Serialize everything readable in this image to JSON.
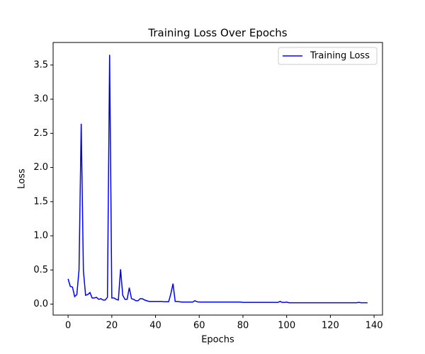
{
  "chart_data": {
    "type": "line",
    "title": "Training Loss Over Epochs",
    "x_label": "Epochs",
    "y_label": "Loss",
    "x": [
      0,
      1,
      2,
      3,
      4,
      5,
      6,
      7,
      8,
      9,
      10,
      11,
      12,
      13,
      14,
      15,
      16,
      17,
      18,
      19,
      20,
      21,
      22,
      23,
      24,
      25,
      26,
      27,
      28,
      29,
      30,
      31,
      32,
      33,
      34,
      35,
      36,
      37,
      38,
      39,
      40,
      41,
      42,
      43,
      44,
      45,
      46,
      47,
      48,
      49,
      50,
      51,
      52,
      53,
      54,
      55,
      56,
      57,
      58,
      59,
      60,
      61,
      62,
      63,
      64,
      65,
      66,
      67,
      68,
      69,
      70,
      71,
      72,
      73,
      74,
      75,
      76,
      77,
      78,
      79,
      80,
      81,
      82,
      83,
      84,
      85,
      86,
      87,
      88,
      89,
      90,
      91,
      92,
      93,
      94,
      95,
      96,
      97,
      98,
      99,
      100,
      101,
      102,
      103,
      104,
      105,
      106,
      107,
      108,
      109,
      110,
      111,
      112,
      113,
      114,
      115,
      116,
      117,
      118,
      119,
      120,
      121,
      122,
      123,
      124,
      125,
      126,
      127,
      128,
      129,
      130,
      131,
      132,
      133,
      134,
      135,
      136,
      137
    ],
    "series": [
      {
        "name": "Training Loss",
        "color": "#0000ff",
        "values": [
          0.37,
          0.26,
          0.25,
          0.11,
          0.14,
          0.5,
          2.64,
          0.49,
          0.13,
          0.14,
          0.17,
          0.09,
          0.09,
          0.1,
          0.07,
          0.08,
          0.06,
          0.06,
          0.1,
          3.65,
          0.09,
          0.09,
          0.07,
          0.06,
          0.51,
          0.13,
          0.07,
          0.07,
          0.24,
          0.08,
          0.07,
          0.05,
          0.05,
          0.08,
          0.08,
          0.06,
          0.05,
          0.04,
          0.04,
          0.04,
          0.04,
          0.04,
          0.04,
          0.04,
          0.035,
          0.035,
          0.035,
          0.15,
          0.3,
          0.04,
          0.04,
          0.035,
          0.03,
          0.03,
          0.03,
          0.03,
          0.03,
          0.03,
          0.05,
          0.035,
          0.03,
          0.03,
          0.03,
          0.03,
          0.03,
          0.03,
          0.03,
          0.03,
          0.03,
          0.03,
          0.03,
          0.03,
          0.03,
          0.03,
          0.03,
          0.03,
          0.03,
          0.03,
          0.03,
          0.03,
          0.025,
          0.025,
          0.025,
          0.025,
          0.025,
          0.025,
          0.025,
          0.025,
          0.025,
          0.025,
          0.025,
          0.025,
          0.025,
          0.025,
          0.025,
          0.025,
          0.025,
          0.04,
          0.025,
          0.025,
          0.03,
          0.02,
          0.02,
          0.02,
          0.02,
          0.02,
          0.02,
          0.02,
          0.02,
          0.02,
          0.02,
          0.02,
          0.02,
          0.02,
          0.02,
          0.02,
          0.02,
          0.02,
          0.02,
          0.02,
          0.02,
          0.02,
          0.02,
          0.02,
          0.02,
          0.02,
          0.02,
          0.02,
          0.02,
          0.02,
          0.02,
          0.02,
          0.02,
          0.025,
          0.02,
          0.02,
          0.02,
          0.02
        ]
      }
    ],
    "xlim": [
      -6.85,
      143.85
    ],
    "ylim": [
      -0.16,
      3.83
    ],
    "xticks": [
      0,
      20,
      40,
      60,
      80,
      100,
      120,
      140
    ],
    "yticks": [
      {
        "value": 0,
        "label": "0.0"
      },
      0.5,
      {
        "value": 1,
        "label": "1.0"
      },
      1.5,
      {
        "value": 2,
        "label": "2.0"
      },
      2.5,
      {
        "value": 3,
        "label": "3.0"
      },
      3.5
    ],
    "legend": "upper right",
    "grid": false
  }
}
